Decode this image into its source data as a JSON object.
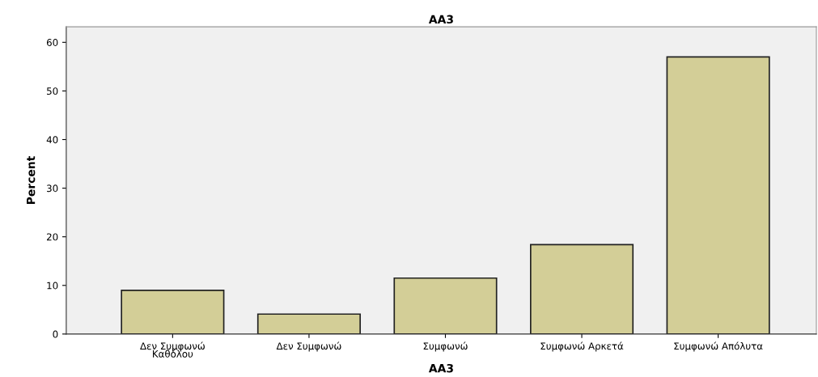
{
  "chart_data": {
    "type": "bar",
    "title": "AA3",
    "xlabel": "AA3",
    "ylabel": "Percent",
    "categories": [
      "Δεν Συμφωνώ\nΚαθόλου",
      "Δεν Συμφωνώ",
      "Συμφωνώ",
      "Συμφωνώ Αρκετά",
      "Συμφωνώ Απόλυτα"
    ],
    "values": [
      9.0,
      4.1,
      11.5,
      18.4,
      57.0
    ],
    "color": "#d3ce97",
    "ylim": [
      0,
      63.2
    ],
    "yticks": [
      0,
      10,
      20,
      30,
      40,
      50,
      60
    ],
    "grid": false
  }
}
